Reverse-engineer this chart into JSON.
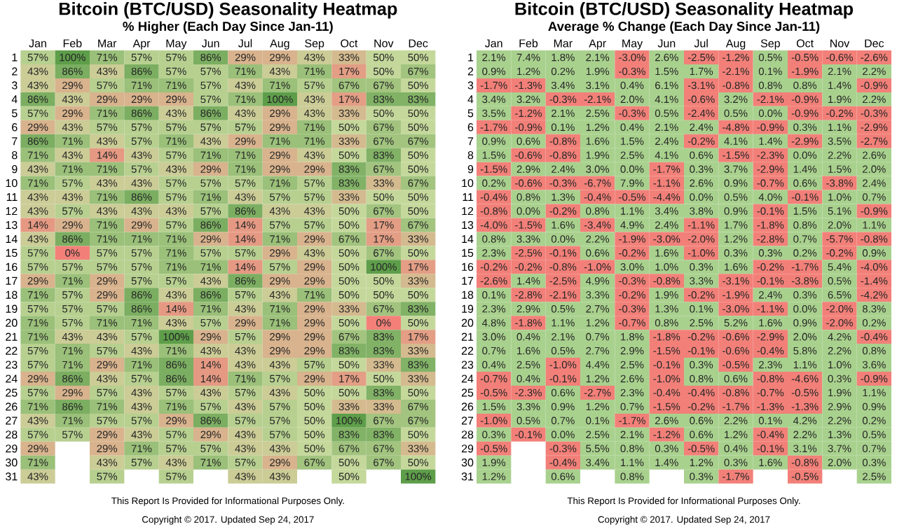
{
  "chart_data": [
    {
      "type": "heatmap",
      "title": "Bitcoin (BTC/USD) Seasonality Heatmap",
      "subtitle": "% Higher (Each Day Since Jan-11)",
      "categories": [
        "Jan",
        "Feb",
        "Mar",
        "Apr",
        "May",
        "Jun",
        "Jul",
        "Aug",
        "Sep",
        "Oct",
        "Nov",
        "Dec"
      ],
      "y_categories": [
        "1",
        "2",
        "3",
        "4",
        "5",
        "6",
        "7",
        "8",
        "9",
        "10",
        "11",
        "12",
        "13",
        "14",
        "15",
        "16",
        "17",
        "18",
        "19",
        "20",
        "21",
        "22",
        "23",
        "24",
        "25",
        "26",
        "27",
        "28",
        "29",
        "30",
        "31"
      ],
      "colors": [
        "#f28079",
        "#c5d89b",
        "#5e9e4a"
      ],
      "cells": [
        [
          57,
          100,
          71,
          57,
          57,
          86,
          29,
          29,
          43,
          33,
          50,
          50
        ],
        [
          43,
          86,
          43,
          86,
          57,
          57,
          71,
          43,
          71,
          17,
          50,
          67
        ],
        [
          43,
          29,
          57,
          71,
          71,
          57,
          43,
          71,
          57,
          67,
          67,
          50
        ],
        [
          86,
          43,
          29,
          29,
          29,
          57,
          71,
          100,
          43,
          17,
          83,
          83
        ],
        [
          57,
          29,
          71,
          86,
          43,
          86,
          43,
          29,
          43,
          33,
          50,
          50
        ],
        [
          29,
          43,
          57,
          57,
          57,
          57,
          57,
          29,
          71,
          50,
          67,
          50
        ],
        [
          86,
          71,
          43,
          57,
          71,
          43,
          29,
          71,
          71,
          33,
          67,
          67
        ],
        [
          71,
          43,
          14,
          43,
          57,
          71,
          71,
          29,
          43,
          50,
          83,
          50
        ],
        [
          43,
          71,
          71,
          57,
          43,
          29,
          71,
          29,
          29,
          83,
          67,
          50
        ],
        [
          71,
          57,
          43,
          43,
          57,
          57,
          57,
          71,
          57,
          83,
          33,
          67
        ],
        [
          43,
          43,
          71,
          86,
          57,
          71,
          43,
          57,
          57,
          33,
          50,
          50
        ],
        [
          43,
          57,
          43,
          43,
          43,
          57,
          86,
          43,
          43,
          50,
          67,
          50
        ],
        [
          14,
          29,
          71,
          29,
          57,
          86,
          14,
          57,
          57,
          50,
          17,
          67
        ],
        [
          43,
          86,
          71,
          71,
          71,
          29,
          14,
          71,
          29,
          67,
          17,
          33
        ],
        [
          57,
          0,
          57,
          57,
          71,
          57,
          57,
          29,
          43,
          50,
          67,
          50
        ],
        [
          57,
          57,
          57,
          57,
          71,
          71,
          14,
          57,
          29,
          50,
          100,
          17
        ],
        [
          29,
          71,
          29,
          57,
          57,
          43,
          86,
          29,
          29,
          50,
          50,
          33
        ],
        [
          71,
          57,
          29,
          86,
          43,
          86,
          57,
          43,
          71,
          50,
          50,
          50
        ],
        [
          57,
          57,
          57,
          86,
          14,
          71,
          43,
          71,
          29,
          33,
          67,
          83
        ],
        [
          71,
          57,
          71,
          71,
          43,
          57,
          29,
          71,
          29,
          50,
          0,
          50
        ],
        [
          71,
          43,
          43,
          57,
          100,
          29,
          57,
          29,
          29,
          67,
          83,
          17
        ],
        [
          57,
          71,
          57,
          43,
          71,
          43,
          43,
          29,
          29,
          83,
          83,
          33
        ],
        [
          57,
          71,
          29,
          71,
          86,
          14,
          43,
          43,
          57,
          50,
          33,
          83
        ],
        [
          29,
          86,
          43,
          57,
          86,
          14,
          71,
          57,
          29,
          17,
          50,
          33
        ],
        [
          57,
          29,
          57,
          43,
          57,
          43,
          57,
          43,
          50,
          50,
          83,
          50
        ],
        [
          71,
          86,
          71,
          43,
          71,
          57,
          43,
          57,
          50,
          33,
          33,
          67
        ],
        [
          43,
          71,
          57,
          57,
          29,
          86,
          57,
          57,
          50,
          100,
          67,
          67
        ],
        [
          57,
          57,
          29,
          43,
          57,
          29,
          43,
          57,
          50,
          83,
          83,
          50
        ],
        [
          29,
          null,
          29,
          71,
          57,
          57,
          43,
          43,
          50,
          67,
          67,
          33
        ],
        [
          71,
          null,
          43,
          57,
          43,
          71,
          57,
          29,
          67,
          50,
          67,
          50
        ],
        [
          43,
          null,
          57,
          null,
          57,
          null,
          43,
          43,
          null,
          50,
          null,
          100
        ]
      ],
      "cell_labels": [
        [
          "57%",
          "100%",
          "71%",
          "57%",
          "57%",
          "86%",
          "29%",
          "29%",
          "43%",
          "33%",
          "50%",
          "50%"
        ],
        [
          "43%",
          "86%",
          "43%",
          "86%",
          "57%",
          "57%",
          "71%",
          "43%",
          "71%",
          "17%",
          "50%",
          "67%"
        ],
        [
          "43%",
          "29%",
          "57%",
          "71%",
          "71%",
          "57%",
          "43%",
          "71%",
          "57%",
          "67%",
          "67%",
          "50%"
        ],
        [
          "86%",
          "43%",
          "29%",
          "29%",
          "29%",
          "57%",
          "71%",
          "100%",
          "43%",
          "17%",
          "83%",
          "83%"
        ],
        [
          "57%",
          "29%",
          "71%",
          "86%",
          "43%",
          "86%",
          "43%",
          "29%",
          "43%",
          "33%",
          "50%",
          "50%"
        ],
        [
          "29%",
          "43%",
          "57%",
          "57%",
          "57%",
          "57%",
          "57%",
          "29%",
          "71%",
          "50%",
          "67%",
          "50%"
        ],
        [
          "86%",
          "71%",
          "43%",
          "57%",
          "71%",
          "43%",
          "29%",
          "71%",
          "71%",
          "33%",
          "67%",
          "67%"
        ],
        [
          "71%",
          "43%",
          "14%",
          "43%",
          "57%",
          "71%",
          "71%",
          "29%",
          "43%",
          "50%",
          "83%",
          "50%"
        ],
        [
          "43%",
          "71%",
          "71%",
          "57%",
          "43%",
          "29%",
          "71%",
          "29%",
          "29%",
          "83%",
          "67%",
          "50%"
        ],
        [
          "71%",
          "57%",
          "43%",
          "43%",
          "57%",
          "57%",
          "57%",
          "71%",
          "57%",
          "83%",
          "33%",
          "67%"
        ],
        [
          "43%",
          "43%",
          "71%",
          "86%",
          "57%",
          "71%",
          "43%",
          "57%",
          "57%",
          "33%",
          "50%",
          "50%"
        ],
        [
          "43%",
          "57%",
          "43%",
          "43%",
          "43%",
          "57%",
          "86%",
          "43%",
          "43%",
          "50%",
          "67%",
          "50%"
        ],
        [
          "14%",
          "29%",
          "71%",
          "29%",
          "57%",
          "86%",
          "14%",
          "57%",
          "57%",
          "50%",
          "17%",
          "67%"
        ],
        [
          "43%",
          "86%",
          "71%",
          "71%",
          "71%",
          "29%",
          "14%",
          "71%",
          "29%",
          "67%",
          "17%",
          "33%"
        ],
        [
          "57%",
          "0%",
          "57%",
          "57%",
          "71%",
          "57%",
          "57%",
          "29%",
          "43%",
          "50%",
          "67%",
          "50%"
        ],
        [
          "57%",
          "57%",
          "57%",
          "57%",
          "71%",
          "71%",
          "14%",
          "57%",
          "29%",
          "50%",
          "100%",
          "17%"
        ],
        [
          "29%",
          "71%",
          "29%",
          "57%",
          "57%",
          "43%",
          "86%",
          "29%",
          "29%",
          "50%",
          "50%",
          "33%"
        ],
        [
          "71%",
          "57%",
          "29%",
          "86%",
          "43%",
          "86%",
          "57%",
          "43%",
          "71%",
          "50%",
          "50%",
          "50%"
        ],
        [
          "57%",
          "57%",
          "57%",
          "86%",
          "14%",
          "71%",
          "43%",
          "71%",
          "29%",
          "33%",
          "67%",
          "83%"
        ],
        [
          "71%",
          "57%",
          "71%",
          "71%",
          "43%",
          "57%",
          "29%",
          "71%",
          "29%",
          "50%",
          "0%",
          "50%"
        ],
        [
          "71%",
          "43%",
          "43%",
          "57%",
          "100%",
          "29%",
          "57%",
          "29%",
          "29%",
          "67%",
          "83%",
          "17%"
        ],
        [
          "57%",
          "71%",
          "57%",
          "43%",
          "71%",
          "43%",
          "43%",
          "29%",
          "29%",
          "83%",
          "83%",
          "33%"
        ],
        [
          "57%",
          "71%",
          "29%",
          "71%",
          "86%",
          "14%",
          "43%",
          "43%",
          "57%",
          "50%",
          "33%",
          "83%"
        ],
        [
          "29%",
          "86%",
          "43%",
          "57%",
          "86%",
          "14%",
          "71%",
          "57%",
          "29%",
          "17%",
          "50%",
          "33%"
        ],
        [
          "57%",
          "29%",
          "57%",
          "43%",
          "57%",
          "43%",
          "57%",
          "43%",
          "50%",
          "50%",
          "83%",
          "50%"
        ],
        [
          "71%",
          "86%",
          "71%",
          "43%",
          "71%",
          "57%",
          "43%",
          "57%",
          "50%",
          "33%",
          "33%",
          "67%"
        ],
        [
          "43%",
          "71%",
          "57%",
          "57%",
          "29%",
          "86%",
          "57%",
          "57%",
          "50%",
          "100%",
          "67%",
          "67%"
        ],
        [
          "57%",
          "57%",
          "29%",
          "43%",
          "57%",
          "29%",
          "43%",
          "57%",
          "50%",
          "83%",
          "83%",
          "50%"
        ],
        [
          "29%",
          null,
          "29%",
          "71%",
          "57%",
          "57%",
          "43%",
          "43%",
          "50%",
          "67%",
          "67%",
          "33%"
        ],
        [
          "71%",
          null,
          "43%",
          "57%",
          "43%",
          "71%",
          "57%",
          "29%",
          "67%",
          "50%",
          "67%",
          "50%"
        ],
        [
          "43%",
          null,
          "57%",
          null,
          "57%",
          null,
          "43%",
          "43%",
          null,
          "50%",
          null,
          "100%"
        ]
      ],
      "annotations": [
        "This Report Is Provided for Informational Purposes Only.",
        "Copyright © 2017. Updated Sep 24, 2017"
      ]
    },
    {
      "type": "heatmap",
      "title": "Bitcoin (BTC/USD) Seasonality Heatmap",
      "subtitle": "Average % Change (Each Day Since Jan-11)",
      "categories": [
        "Jan",
        "Feb",
        "Mar",
        "Apr",
        "May",
        "Jun",
        "Jul",
        "Aug",
        "Sep",
        "Oct",
        "Nov",
        "Dec"
      ],
      "y_categories": [
        "1",
        "2",
        "3",
        "4",
        "5",
        "6",
        "7",
        "8",
        "9",
        "10",
        "11",
        "12",
        "13",
        "14",
        "15",
        "16",
        "17",
        "18",
        "19",
        "20",
        "21",
        "22",
        "23",
        "24",
        "25",
        "26",
        "27",
        "28",
        "29",
        "30",
        "31"
      ],
      "colors": [
        "#f28079",
        "#a9d18e"
      ],
      "cells": [
        [
          2.1,
          7.4,
          1.8,
          2.1,
          -3.0,
          2.6,
          -2.5,
          -1.2,
          0.5,
          -0.5,
          -0.6,
          -2.6
        ],
        [
          0.9,
          1.2,
          0.2,
          1.9,
          -0.3,
          1.5,
          1.7,
          -2.1,
          0.1,
          -1.9,
          2.1,
          2.2
        ],
        [
          -1.7,
          -1.3,
          3.4,
          3.1,
          0.4,
          6.1,
          -3.1,
          -0.8,
          0.8,
          0.8,
          1.4,
          -0.9
        ],
        [
          3.4,
          3.2,
          -0.3,
          -2.1,
          2.0,
          4.1,
          -0.6,
          3.2,
          -2.1,
          -0.9,
          1.9,
          2.2
        ],
        [
          3.5,
          -1.2,
          2.1,
          2.5,
          -0.3,
          0.5,
          -2.4,
          0.5,
          0.0,
          -0.9,
          -0.2,
          -0.3
        ],
        [
          -1.7,
          -0.9,
          0.1,
          1.2,
          0.4,
          2.1,
          2.4,
          -4.8,
          -0.9,
          0.3,
          1.1,
          -2.9
        ],
        [
          0.9,
          0.6,
          -0.8,
          1.6,
          1.5,
          2.4,
          -0.2,
          4.1,
          1.4,
          -2.9,
          3.5,
          -2.7
        ],
        [
          1.5,
          -0.6,
          -0.8,
          1.9,
          2.5,
          4.1,
          0.6,
          -1.5,
          -2.3,
          0.0,
          2.2,
          2.6
        ],
        [
          -1.5,
          2.9,
          2.4,
          3.0,
          0.0,
          -1.7,
          0.3,
          3.7,
          -2.9,
          1.4,
          1.5,
          2.0
        ],
        [
          0.2,
          -0.6,
          -0.3,
          -6.7,
          7.9,
          -1.1,
          2.6,
          0.9,
          -0.7,
          0.6,
          -3.8,
          2.4
        ],
        [
          -0.4,
          0.8,
          1.3,
          -0.4,
          -0.5,
          -4.4,
          0.0,
          0.5,
          4.0,
          -0.1,
          1.0,
          0.7
        ],
        [
          -0.8,
          0.0,
          -0.2,
          0.8,
          1.1,
          3.4,
          3.8,
          0.9,
          -0.1,
          1.5,
          5.1,
          -0.9
        ],
        [
          -4.0,
          -1.5,
          1.6,
          -3.4,
          4.9,
          2.4,
          -1.1,
          1.7,
          -1.8,
          0.8,
          2.0,
          1.1
        ],
        [
          0.8,
          3.3,
          0.0,
          2.2,
          -1.9,
          -3.0,
          -2.0,
          1.2,
          -2.8,
          0.7,
          -5.7,
          -0.8
        ],
        [
          2.3,
          -2.5,
          -0.1,
          0.6,
          -0.2,
          1.6,
          -1.0,
          0.3,
          0.3,
          0.2,
          -0.2,
          0.9
        ],
        [
          -0.2,
          -0.2,
          -0.8,
          -1.0,
          3.0,
          1.0,
          0.3,
          1.6,
          -0.2,
          -1.7,
          5.4,
          -4.0
        ],
        [
          -2.6,
          1.4,
          -2.5,
          4.9,
          -0.3,
          -0.8,
          3.3,
          -3.1,
          -0.1,
          -3.8,
          0.5,
          -1.4
        ],
        [
          0.1,
          -2.8,
          -2.1,
          3.3,
          -0.2,
          1.9,
          -0.2,
          -1.9,
          2.4,
          0.3,
          6.5,
          -4.2
        ],
        [
          2.3,
          2.9,
          0.5,
          2.7,
          -0.3,
          1.3,
          0.1,
          -3.0,
          -1.1,
          0.0,
          -2.0,
          8.3
        ],
        [
          4.8,
          -1.8,
          1.1,
          1.2,
          -0.7,
          0.8,
          2.5,
          5.2,
          1.6,
          0.9,
          -2.0,
          0.2
        ],
        [
          3.0,
          0.4,
          2.1,
          0.7,
          1.8,
          -1.8,
          -0.2,
          -0.6,
          -2.9,
          2.0,
          4.2,
          -0.4
        ],
        [
          0.7,
          1.6,
          0.5,
          2.7,
          2.9,
          -1.5,
          -0.1,
          -0.6,
          -0.4,
          5.8,
          2.2,
          0.8
        ],
        [
          0.4,
          2.5,
          -1.0,
          4.4,
          2.5,
          -0.1,
          0.3,
          -0.5,
          2.3,
          1.1,
          1.0,
          3.6
        ],
        [
          -0.7,
          0.4,
          -0.1,
          1.2,
          2.6,
          -1.0,
          0.8,
          0.6,
          -0.8,
          -4.6,
          0.3,
          -0.9
        ],
        [
          -0.5,
          -2.3,
          0.6,
          -2.7,
          2.3,
          -0.4,
          -0.4,
          -0.8,
          -0.7,
          -0.5,
          1.9,
          1.1
        ],
        [
          1.5,
          3.3,
          0.9,
          1.2,
          0.7,
          -1.5,
          -0.2,
          -1.7,
          -1.3,
          -1.3,
          2.9,
          0.9
        ],
        [
          -1.0,
          0.5,
          0.7,
          0.1,
          -1.7,
          2.6,
          0.6,
          2.2,
          0.1,
          4.2,
          2.2,
          0.2
        ],
        [
          0.3,
          -0.1,
          0.0,
          2.5,
          2.1,
          -1.2,
          0.6,
          1.2,
          -0.4,
          2.2,
          1.3,
          0.5
        ],
        [
          -0.5,
          null,
          -0.3,
          5.5,
          0.8,
          0.3,
          -0.5,
          0.4,
          -0.1,
          3.1,
          3.7,
          0.7
        ],
        [
          1.9,
          null,
          -0.4,
          3.4,
          1.1,
          1.4,
          1.2,
          0.3,
          1.6,
          -0.8,
          2.0,
          0.3
        ],
        [
          1.2,
          null,
          0.6,
          null,
          0.8,
          null,
          0.3,
          -1.7,
          null,
          -0.5,
          null,
          2.5
        ]
      ],
      "cell_labels": [
        [
          "2.1%",
          "7.4%",
          "1.8%",
          "2.1%",
          "-3.0%",
          "2.6%",
          "-2.5%",
          "-1.2%",
          "0.5%",
          "-0.5%",
          "-0.6%",
          "-2.6%"
        ],
        [
          "0.9%",
          "1.2%",
          "0.2%",
          "1.9%",
          "-0.3%",
          "1.5%",
          "1.7%",
          "-2.1%",
          "0.1%",
          "-1.9%",
          "2.1%",
          "2.2%"
        ],
        [
          "-1.7%",
          "-1.3%",
          "3.4%",
          "3.1%",
          "0.4%",
          "6.1%",
          "-3.1%",
          "-0.8%",
          "0.8%",
          "0.8%",
          "1.4%",
          "-0.9%"
        ],
        [
          "3.4%",
          "3.2%",
          "-0.3%",
          "-2.1%",
          "2.0%",
          "4.1%",
          "-0.6%",
          "3.2%",
          "-2.1%",
          "-0.9%",
          "1.9%",
          "2.2%"
        ],
        [
          "3.5%",
          "-1.2%",
          "2.1%",
          "2.5%",
          "-0.3%",
          "0.5%",
          "-2.4%",
          "0.5%",
          "0.0%",
          "-0.9%",
          "-0.2%",
          "-0.3%"
        ],
        [
          "-1.7%",
          "-0.9%",
          "0.1%",
          "1.2%",
          "0.4%",
          "2.1%",
          "2.4%",
          "-4.8%",
          "-0.9%",
          "0.3%",
          "1.1%",
          "-2.9%"
        ],
        [
          "0.9%",
          "0.6%",
          "-0.8%",
          "1.6%",
          "1.5%",
          "2.4%",
          "-0.2%",
          "4.1%",
          "1.4%",
          "-2.9%",
          "3.5%",
          "-2.7%"
        ],
        [
          "1.5%",
          "-0.6%",
          "-0.8%",
          "1.9%",
          "2.5%",
          "4.1%",
          "0.6%",
          "-1.5%",
          "-2.3%",
          "0.0%",
          "2.2%",
          "2.6%"
        ],
        [
          "-1.5%",
          "2.9%",
          "2.4%",
          "3.0%",
          "0.0%",
          "-1.7%",
          "0.3%",
          "3.7%",
          "-2.9%",
          "1.4%",
          "1.5%",
          "2.0%"
        ],
        [
          "0.2%",
          "-0.6%",
          "-0.3%",
          "-6.7%",
          "7.9%",
          "-1.1%",
          "2.6%",
          "0.9%",
          "-0.7%",
          "0.6%",
          "-3.8%",
          "2.4%"
        ],
        [
          "-0.4%",
          "0.8%",
          "1.3%",
          "-0.4%",
          "-0.5%",
          "-4.4%",
          "0.0%",
          "0.5%",
          "4.0%",
          "-0.1%",
          "1.0%",
          "0.7%"
        ],
        [
          "-0.8%",
          "0.0%",
          "-0.2%",
          "0.8%",
          "1.1%",
          "3.4%",
          "3.8%",
          "0.9%",
          "-0.1%",
          "1.5%",
          "5.1%",
          "-0.9%"
        ],
        [
          "-4.0%",
          "-1.5%",
          "1.6%",
          "-3.4%",
          "4.9%",
          "2.4%",
          "-1.1%",
          "1.7%",
          "-1.8%",
          "0.8%",
          "2.0%",
          "1.1%"
        ],
        [
          "0.8%",
          "3.3%",
          "0.0%",
          "2.2%",
          "-1.9%",
          "-3.0%",
          "-2.0%",
          "1.2%",
          "-2.8%",
          "0.7%",
          "-5.7%",
          "-0.8%"
        ],
        [
          "2.3%",
          "-2.5%",
          "-0.1%",
          "0.6%",
          "-0.2%",
          "1.6%",
          "-1.0%",
          "0.3%",
          "0.3%",
          "0.2%",
          "-0.2%",
          "0.9%"
        ],
        [
          "-0.2%",
          "-0.2%",
          "-0.8%",
          "-1.0%",
          "3.0%",
          "1.0%",
          "0.3%",
          "1.6%",
          "-0.2%",
          "-1.7%",
          "5.4%",
          "-4.0%"
        ],
        [
          "-2.6%",
          "1.4%",
          "-2.5%",
          "4.9%",
          "-0.3%",
          "-0.8%",
          "3.3%",
          "-3.1%",
          "-0.1%",
          "-3.8%",
          "0.5%",
          "-1.4%"
        ],
        [
          "0.1%",
          "-2.8%",
          "-2.1%",
          "3.3%",
          "-0.2%",
          "1.9%",
          "-0.2%",
          "-1.9%",
          "2.4%",
          "0.3%",
          "6.5%",
          "-4.2%"
        ],
        [
          "2.3%",
          "2.9%",
          "0.5%",
          "2.7%",
          "-0.3%",
          "1.3%",
          "0.1%",
          "-3.0%",
          "-1.1%",
          "0.0%",
          "-2.0%",
          "8.3%"
        ],
        [
          "4.8%",
          "-1.8%",
          "1.1%",
          "1.2%",
          "-0.7%",
          "0.8%",
          "2.5%",
          "5.2%",
          "1.6%",
          "0.9%",
          "-2.0%",
          "0.2%"
        ],
        [
          "3.0%",
          "0.4%",
          "2.1%",
          "0.7%",
          "1.8%",
          "-1.8%",
          "-0.2%",
          "-0.6%",
          "-2.9%",
          "2.0%",
          "4.2%",
          "-0.4%"
        ],
        [
          "0.7%",
          "1.6%",
          "0.5%",
          "2.7%",
          "2.9%",
          "-1.5%",
          "-0.1%",
          "-0.6%",
          "-0.4%",
          "5.8%",
          "2.2%",
          "0.8%"
        ],
        [
          "0.4%",
          "2.5%",
          "-1.0%",
          "4.4%",
          "2.5%",
          "-0.1%",
          "0.3%",
          "-0.5%",
          "2.3%",
          "1.1%",
          "1.0%",
          "3.6%"
        ],
        [
          "-0.7%",
          "0.4%",
          "-0.1%",
          "1.2%",
          "2.6%",
          "-1.0%",
          "0.8%",
          "0.6%",
          "-0.8%",
          "-4.6%",
          "0.3%",
          "-0.9%"
        ],
        [
          "-0.5%",
          "-2.3%",
          "0.6%",
          "-2.7%",
          "2.3%",
          "-0.4%",
          "-0.4%",
          "-0.8%",
          "-0.7%",
          "-0.5%",
          "1.9%",
          "1.1%"
        ],
        [
          "1.5%",
          "3.3%",
          "0.9%",
          "1.2%",
          "0.7%",
          "-1.5%",
          "-0.2%",
          "-1.7%",
          "-1.3%",
          "-1.3%",
          "2.9%",
          "0.9%"
        ],
        [
          "-1.0%",
          "0.5%",
          "0.7%",
          "0.1%",
          "-1.7%",
          "2.6%",
          "0.6%",
          "2.2%",
          "0.1%",
          "4.2%",
          "2.2%",
          "0.2%"
        ],
        [
          "0.3%",
          "-0.1%",
          "0.0%",
          "2.5%",
          "2.1%",
          "-1.2%",
          "0.6%",
          "1.2%",
          "-0.4%",
          "2.2%",
          "1.3%",
          "0.5%"
        ],
        [
          "-0.5%",
          null,
          "-0.3%",
          "5.5%",
          "0.8%",
          "0.3%",
          "-0.5%",
          "0.4%",
          "-0.1%",
          "3.1%",
          "3.7%",
          "0.7%"
        ],
        [
          "1.9%",
          null,
          "-0.4%",
          "3.4%",
          "1.1%",
          "1.4%",
          "1.2%",
          "0.3%",
          "1.6%",
          "-0.8%",
          "2.0%",
          "0.3%"
        ],
        [
          "1.2%",
          null,
          "0.6%",
          null,
          "0.8%",
          null,
          "0.3%",
          "-1.7%",
          null,
          "-0.5%",
          null,
          "2.5%"
        ]
      ],
      "annotations": [
        "This Report Is Provided for Informational Purposes Only.",
        "Copyright © 2017. Updated Sep 24, 2017"
      ]
    }
  ]
}
